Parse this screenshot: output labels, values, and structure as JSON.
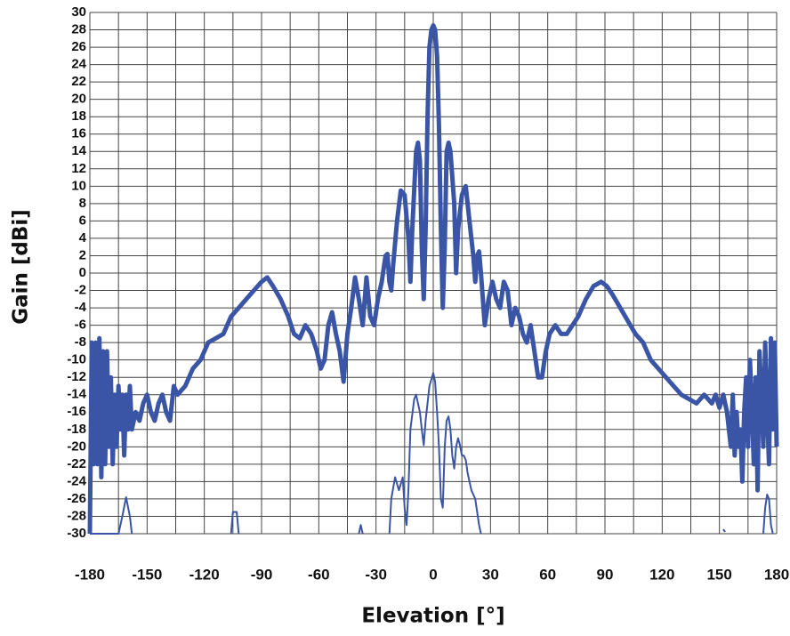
{
  "chart_data": {
    "type": "line",
    "xlabel": "Elevation [°]",
    "ylabel": "Gain [dBi]",
    "xlim": [
      -180,
      180
    ],
    "ylim": [
      -30,
      30
    ],
    "xticks": [
      -180,
      -150,
      -120,
      -90,
      -60,
      -30,
      0,
      30,
      60,
      90,
      120,
      150,
      180
    ],
    "xgrid": [
      -180,
      -165,
      -150,
      -135,
      -120,
      -105,
      -90,
      -75,
      -60,
      -45,
      -30,
      -15,
      0,
      15,
      30,
      45,
      60,
      75,
      90,
      105,
      120,
      135,
      150,
      165,
      180
    ],
    "yticks": [
      -30,
      -28,
      -26,
      -24,
      -22,
      -20,
      -18,
      -16,
      -14,
      -12,
      -10,
      -8,
      -6,
      -4,
      -2,
      0,
      2,
      4,
      6,
      8,
      10,
      12,
      14,
      16,
      18,
      20,
      22,
      24,
      26,
      28,
      30
    ],
    "grid": true,
    "series": [
      {
        "color": "#3a55a6",
        "width": 5,
        "x": [
          -180,
          -179,
          -178,
          -177,
          -176,
          -175,
          -174,
          -173,
          -172,
          -171,
          -170,
          -169,
          -168,
          -167,
          -166,
          -165,
          -164,
          -163,
          -162,
          -161,
          -160,
          -159,
          -158,
          -156,
          -154,
          -152,
          -150,
          -148,
          -146,
          -144,
          -142,
          -140,
          -138,
          -136,
          -134,
          -130,
          -126,
          -122,
          -118,
          -114,
          -110,
          -106,
          -102,
          -98,
          -94,
          -90,
          -87,
          -84,
          -80,
          -76,
          -73,
          -70,
          -67,
          -64,
          -61,
          -59,
          -57,
          -55,
          -53,
          -51,
          -49,
          -47,
          -45,
          -43,
          -41,
          -39,
          -37,
          -35,
          -33,
          -31,
          -29,
          -27,
          -25,
          -24,
          -23,
          -22,
          -21,
          -19,
          -17,
          -15,
          -13,
          -12,
          -11,
          -9,
          -8,
          -7,
          -6,
          -5,
          -4,
          -3,
          -2,
          -1,
          0,
          1,
          2,
          3,
          4,
          5,
          6,
          7,
          8,
          9,
          11,
          12,
          13,
          15,
          17,
          19,
          21,
          22,
          23,
          24,
          25,
          27,
          29,
          31,
          33,
          35,
          37,
          39,
          41,
          43,
          45,
          47,
          49,
          51,
          53,
          55,
          57,
          59,
          61,
          64,
          67,
          70,
          73,
          76,
          80,
          84,
          88,
          91,
          94,
          98,
          102,
          106,
          110,
          114,
          118,
          122,
          126,
          130,
          134,
          138,
          142,
          146,
          148,
          150,
          152,
          154,
          156,
          157,
          158,
          159,
          160,
          161,
          162,
          163,
          164,
          165,
          166,
          167,
          168,
          169,
          170,
          171,
          172,
          173,
          174,
          175,
          176,
          177,
          178,
          179,
          180
        ],
        "values": [
          -30,
          -8,
          -22,
          -8,
          -22,
          -7.5,
          -23.5,
          -9,
          -22,
          -9,
          -20,
          -12,
          -22,
          -14,
          -20,
          -13,
          -18,
          -14,
          -21,
          -14,
          -18,
          -13,
          -18,
          -16,
          -17,
          -15,
          -14,
          -16,
          -17,
          -15,
          -14,
          -16,
          -17,
          -13,
          -14,
          -13,
          -11,
          -10,
          -8,
          -7.5,
          -7,
          -5,
          -4,
          -3,
          -2,
          -1,
          -0.5,
          -1.5,
          -3,
          -5,
          -7,
          -7.5,
          -6,
          -7,
          -9,
          -11,
          -10,
          -6,
          -4.5,
          -7,
          -9,
          -12.5,
          -7,
          -4,
          -0.5,
          -3,
          -6,
          -0.5,
          -5,
          -6,
          -3,
          -1,
          2,
          2.2,
          -1,
          -2,
          1,
          6,
          9.5,
          9,
          4,
          -1,
          5,
          14,
          15,
          13,
          3,
          -3,
          5,
          18,
          26,
          28,
          28.5,
          28,
          25,
          17,
          5,
          -4,
          3,
          14,
          15,
          14,
          8,
          0,
          5,
          9,
          10,
          6,
          2,
          -1,
          2,
          2.5,
          0,
          -6,
          -3,
          -1,
          -3,
          -4,
          -1,
          -2,
          -6,
          -4,
          -5,
          -7,
          -8,
          -6,
          -9,
          -12,
          -12,
          -9,
          -7,
          -6,
          -7,
          -7,
          -6,
          -5,
          -3,
          -1.5,
          -1,
          -1.5,
          -2.5,
          -4,
          -5.5,
          -7,
          -8,
          -10,
          -11,
          -12,
          -13,
          -14,
          -14.5,
          -15,
          -14,
          -15,
          -14,
          -15.5,
          -14,
          -16,
          -20,
          -14,
          -21,
          -16,
          -20,
          -18,
          -24,
          -16,
          -12,
          -20,
          -10,
          -15,
          -22,
          -12,
          -25,
          -9,
          -14,
          -20,
          -8,
          -16,
          -22,
          -7.5,
          -18,
          -8,
          -20
        ]
      },
      {
        "color": "#3a55a6",
        "width": 2,
        "x": [
          -180,
          -165,
          -163,
          -161,
          -159,
          -158,
          -130,
          -106,
          -105,
          -103,
          -102,
          -70,
          -39,
          -38,
          -37,
          -30,
          -23,
          -22,
          -20,
          -18,
          -16,
          -15,
          -14,
          -13,
          -12,
          -10,
          -9,
          -7,
          -6,
          -5,
          -4,
          -2,
          0,
          1,
          2,
          3,
          4,
          5,
          6,
          7,
          8,
          9,
          10,
          11,
          12,
          13,
          14,
          15,
          16,
          17,
          18,
          20,
          22,
          24,
          25,
          90,
          152,
          153,
          160,
          173,
          174,
          175,
          176,
          177,
          178
        ],
        "values": [
          -30,
          -30,
          -28,
          -25.8,
          -28,
          -30,
          null,
          -30,
          -27.5,
          -27.5,
          -30,
          null,
          -30,
          -29,
          -30,
          null,
          -30,
          -26,
          -23.5,
          -25,
          -23.5,
          -27,
          -29,
          -25,
          -18,
          -14.5,
          -14,
          -16,
          -18,
          -19.8,
          -17,
          -13,
          -11.5,
          -12.5,
          -16,
          -20,
          -26,
          -27,
          -20,
          -17,
          -16.5,
          -18,
          -21,
          -22.5,
          -20,
          -19,
          -19.8,
          -21,
          -21,
          -21.5,
          -23,
          -25,
          -26,
          -29,
          -30,
          null,
          -29.5,
          -29.8,
          null,
          -30,
          -27,
          -25.5,
          -26,
          -29,
          -30
        ]
      }
    ]
  }
}
